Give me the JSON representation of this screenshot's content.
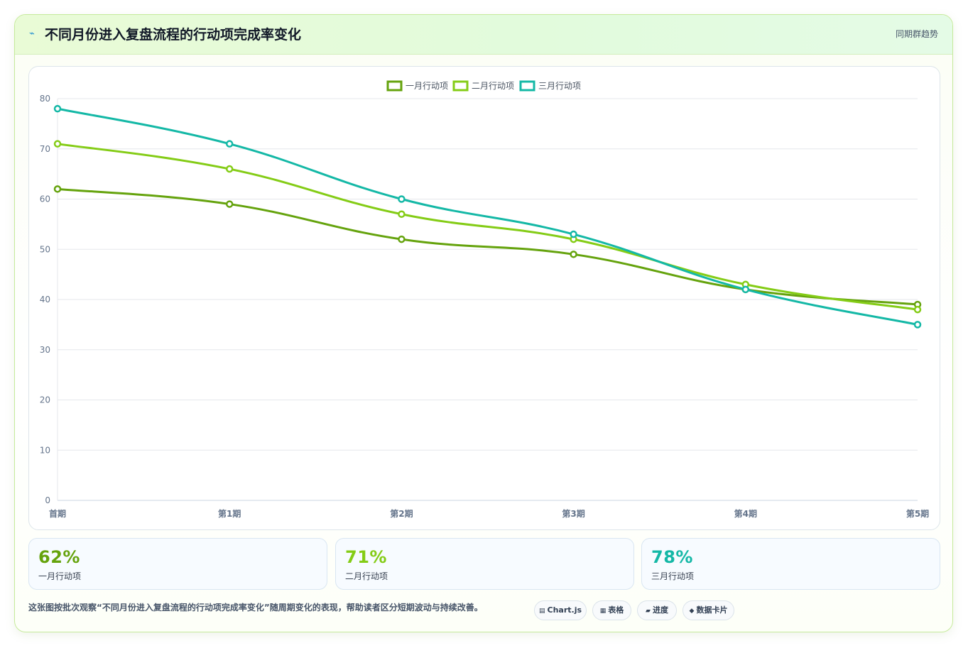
{
  "header": {
    "title": "不同月份进入复盘流程的行动项完成率变化",
    "tag": "同期群趋势",
    "icon": "lightning-icon"
  },
  "chart_data": {
    "type": "line",
    "x": [
      "首期",
      "第1期",
      "第2期",
      "第3期",
      "第4期",
      "第5期"
    ],
    "series": [
      {
        "name": "一月行动项",
        "values": [
          62,
          59,
          52,
          49,
          42,
          39
        ],
        "color": "#65a30d"
      },
      {
        "name": "二月行动项",
        "values": [
          71,
          66,
          57,
          52,
          43,
          38
        ],
        "color": "#84cc16"
      },
      {
        "name": "三月行动项",
        "values": [
          78,
          71,
          60,
          53,
          42,
          35
        ],
        "color": "#14b8a6"
      }
    ],
    "yticks": [
      0,
      10,
      20,
      30,
      40,
      50,
      60,
      70,
      80
    ],
    "ylim": [
      0,
      80
    ],
    "grid": true,
    "legend": "top-center"
  },
  "stats": [
    {
      "value": "62%",
      "label": "一月行动项",
      "color": "#65a30d"
    },
    {
      "value": "71%",
      "label": "二月行动项",
      "color": "#84cc16"
    },
    {
      "value": "78%",
      "label": "三月行动项",
      "color": "#14b8a6"
    }
  ],
  "footnote": "这张图按批次观察“不同月份进入复盘流程的行动项完成率变化”随周期变化的表现，帮助读者区分短期波动与持续改善。",
  "tags": [
    {
      "label": "Chart.js",
      "icon": "chart-icon"
    },
    {
      "label": "表格",
      "icon": "table-icon"
    },
    {
      "label": "进度",
      "icon": "progress-icon"
    },
    {
      "label": "数据卡片",
      "icon": "card-icon"
    }
  ]
}
